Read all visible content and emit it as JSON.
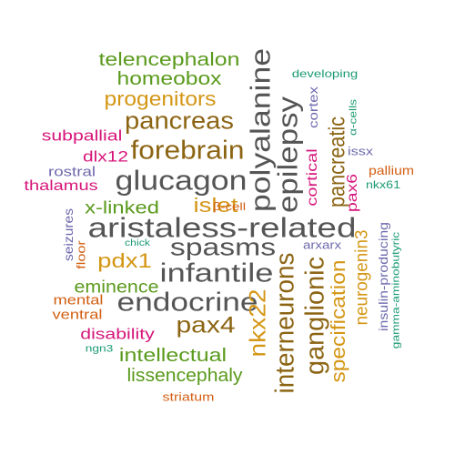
{
  "word_cloud": {
    "colors": {
      "gray": "#555555",
      "brown": "#8c6514",
      "gold": "#d49614",
      "green": "#5a9a1c",
      "magenta": "#d6157a",
      "purple": "#6c68ac",
      "teal": "#1b9a73",
      "orange": "#d35f12"
    },
    "words": [
      {
        "text": "aristaless-related",
        "color": "gray",
        "orientation": "horizontal"
      },
      {
        "text": "glucagon",
        "color": "gray",
        "orientation": "horizontal"
      },
      {
        "text": "spasms",
        "color": "gray",
        "orientation": "horizontal"
      },
      {
        "text": "infantile",
        "color": "gray",
        "orientation": "horizontal"
      },
      {
        "text": "endocrine",
        "color": "gray",
        "orientation": "horizontal"
      },
      {
        "text": "polyalanine",
        "color": "gray",
        "orientation": "vertical"
      },
      {
        "text": "epilepsy",
        "color": "gray",
        "orientation": "vertical"
      },
      {
        "text": "forebrain",
        "color": "brown",
        "orientation": "horizontal"
      },
      {
        "text": "pancreas",
        "color": "brown",
        "orientation": "horizontal"
      },
      {
        "text": "pax4",
        "color": "brown",
        "orientation": "horizontal"
      },
      {
        "text": "ganglionic",
        "color": "brown",
        "orientation": "vertical"
      },
      {
        "text": "pancreatic",
        "color": "brown",
        "orientation": "vertical"
      },
      {
        "text": "interneurons",
        "color": "brown",
        "orientation": "vertical"
      },
      {
        "text": "nkx22",
        "color": "gold",
        "orientation": "vertical"
      },
      {
        "text": "specification",
        "color": "gold",
        "orientation": "vertical"
      },
      {
        "text": "neurogenin3",
        "color": "gold",
        "orientation": "vertical"
      },
      {
        "text": "progenitors",
        "color": "gold",
        "orientation": "horizontal"
      },
      {
        "text": "islet",
        "color": "gold",
        "orientation": "horizontal"
      },
      {
        "text": "pdx1",
        "color": "gold",
        "orientation": "horizontal"
      },
      {
        "text": "telencephalon",
        "color": "green",
        "orientation": "horizontal"
      },
      {
        "text": "homeobox",
        "color": "green",
        "orientation": "horizontal"
      },
      {
        "text": "x-linked",
        "color": "green",
        "orientation": "horizontal"
      },
      {
        "text": "eminence",
        "color": "green",
        "orientation": "horizontal"
      },
      {
        "text": "intellectual",
        "color": "green",
        "orientation": "horizontal"
      },
      {
        "text": "lissencephaly",
        "color": "green",
        "orientation": "horizontal"
      },
      {
        "text": "subpallial",
        "color": "magenta",
        "orientation": "horizontal"
      },
      {
        "text": "dlx12",
        "color": "magenta",
        "orientation": "horizontal"
      },
      {
        "text": "thalamus",
        "color": "magenta",
        "orientation": "horizontal"
      },
      {
        "text": "disability",
        "color": "magenta",
        "orientation": "horizontal"
      },
      {
        "text": "cortical",
        "color": "magenta",
        "orientation": "vertical"
      },
      {
        "text": "pax6",
        "color": "magenta",
        "orientation": "vertical"
      },
      {
        "text": "cortex",
        "color": "purple",
        "orientation": "vertical"
      },
      {
        "text": "rostral",
        "color": "purple",
        "orientation": "horizontal"
      },
      {
        "text": "seizures",
        "color": "purple",
        "orientation": "vertical"
      },
      {
        "text": "arxarx",
        "color": "purple",
        "orientation": "horizontal"
      },
      {
        "text": "issx",
        "color": "purple",
        "orientation": "horizontal"
      },
      {
        "text": "insulin-producing",
        "color": "purple",
        "orientation": "vertical"
      },
      {
        "text": "developing",
        "color": "teal",
        "orientation": "horizontal"
      },
      {
        "text": "α-cells",
        "color": "teal",
        "orientation": "vertical"
      },
      {
        "text": "nkx61",
        "color": "teal",
        "orientation": "horizontal"
      },
      {
        "text": "gamma-aminobutyric",
        "color": "teal",
        "orientation": "vertical"
      },
      {
        "text": "chick",
        "color": "teal",
        "orientation": "horizontal"
      },
      {
        "text": "ngn3",
        "color": "teal",
        "orientation": "horizontal"
      },
      {
        "text": "pallium",
        "color": "orange",
        "orientation": "horizontal"
      },
      {
        "text": "β-cell",
        "color": "orange",
        "orientation": "horizontal"
      },
      {
        "text": "floor",
        "color": "orange",
        "orientation": "vertical"
      },
      {
        "text": "mental",
        "color": "orange",
        "orientation": "horizontal"
      },
      {
        "text": "ventral",
        "color": "orange",
        "orientation": "horizontal"
      },
      {
        "text": "striatum",
        "color": "orange",
        "orientation": "horizontal"
      }
    ]
  }
}
